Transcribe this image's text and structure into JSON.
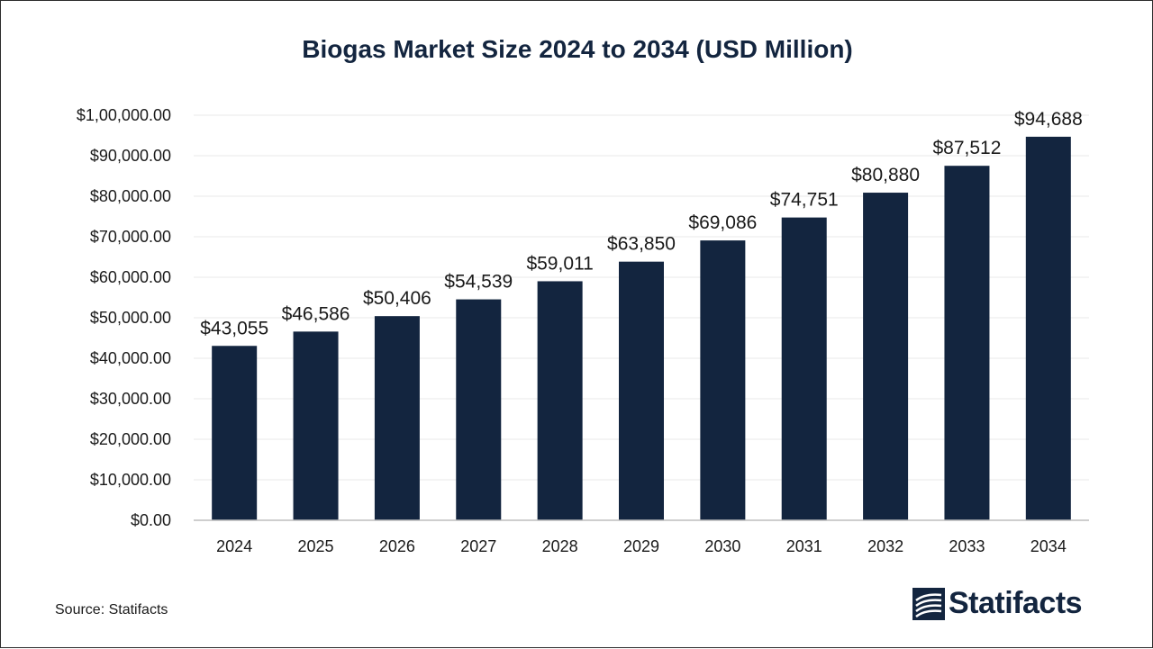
{
  "title": "Biogas Market Size 2024 to 2034 (USD Million)",
  "source": "Source: Statifacts",
  "brand": {
    "name": "Statifacts",
    "icon": "statifacts-logo-icon"
  },
  "colors": {
    "bar": "#13253f",
    "title": "#13253f",
    "grid": "#e8e8e8",
    "axis": "#bdbdbd"
  },
  "chart_data": {
    "type": "bar",
    "categories": [
      "2024",
      "2025",
      "2026",
      "2027",
      "2028",
      "2029",
      "2030",
      "2031",
      "2032",
      "2033",
      "2034"
    ],
    "values": [
      43055,
      46586,
      50406,
      54539,
      59011,
      63850,
      69086,
      74751,
      80880,
      87512,
      94688
    ],
    "data_labels": [
      "$43,055",
      "$46,586",
      "$50,406",
      "$54,539",
      "$59,011",
      "$63,850",
      "$69,086",
      "$74,751",
      "$80,880",
      "$87,512",
      "$94,688"
    ],
    "yticks": [
      0,
      10000,
      20000,
      30000,
      40000,
      50000,
      60000,
      70000,
      80000,
      90000,
      100000
    ],
    "ytick_labels": [
      "$0.00",
      "$10,000.00",
      "$20,000.00",
      "$30,000.00",
      "$40,000.00",
      "$50,000.00",
      "$60,000.00",
      "$70,000.00",
      "$80,000.00",
      "$90,000.00",
      "$1,00,000.00"
    ],
    "ylim": [
      0,
      100000
    ],
    "grid": true,
    "legend": "none"
  }
}
